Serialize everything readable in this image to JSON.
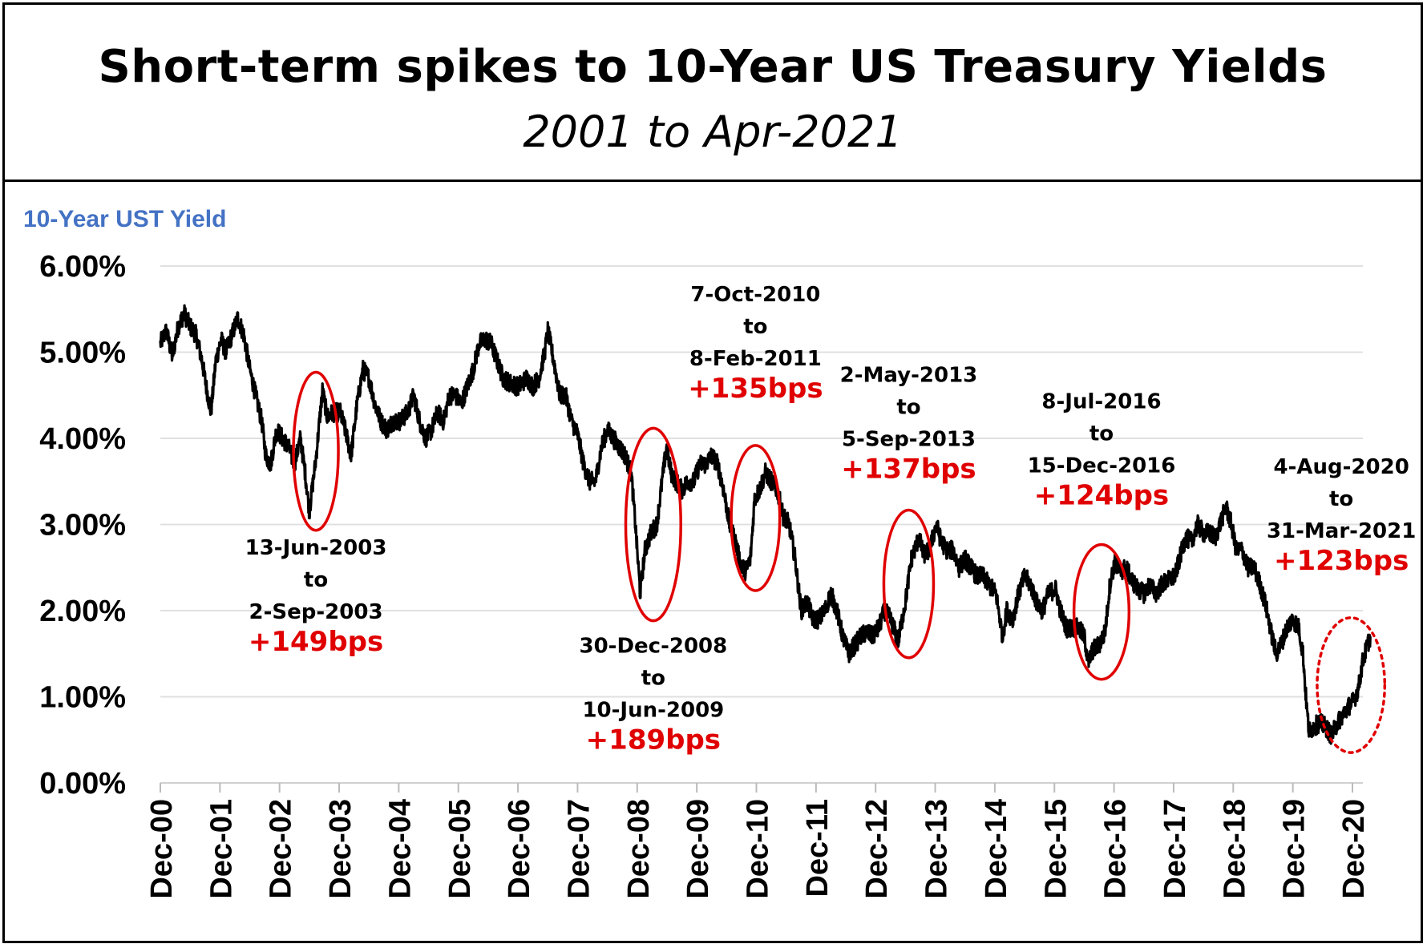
{
  "header": {
    "title": "Short-term spikes to 10-Year US Treasury Yields",
    "subtitle": "2001 to Apr-2021"
  },
  "chart_data": {
    "type": "line",
    "title": "Short-term spikes to 10-Year US Treasury Yields",
    "subtitle": "2001 to Apr-2021",
    "ylabel": "10-Year UST Yield",
    "xlabel": "",
    "ylim": [
      0,
      6
    ],
    "y_ticks": [
      "0.00%",
      "1.00%",
      "2.00%",
      "3.00%",
      "4.00%",
      "5.00%",
      "6.00%"
    ],
    "x_ticks": [
      "Dec-00",
      "Dec-01",
      "Dec-02",
      "Dec-03",
      "Dec-04",
      "Dec-05",
      "Dec-06",
      "Dec-07",
      "Dec-08",
      "Dec-09",
      "Dec-10",
      "Dec-11",
      "Dec-12",
      "Dec-13",
      "Dec-14",
      "Dec-15",
      "Dec-16",
      "Dec-17",
      "Dec-18",
      "Dec-19",
      "Dec-20"
    ],
    "grid": true,
    "colors": {
      "line": "#000000",
      "annotation": "#e00000",
      "ylabel": "#4472c4",
      "grid": "#e0e0e0"
    },
    "series": [
      {
        "values": [
          [
            2000.95,
            5.1
          ],
          [
            2001.05,
            5.25
          ],
          [
            2001.15,
            4.95
          ],
          [
            2001.25,
            5.3
          ],
          [
            2001.35,
            5.45
          ],
          [
            2001.45,
            5.3
          ],
          [
            2001.55,
            5.2
          ],
          [
            2001.65,
            4.9
          ],
          [
            2001.72,
            4.6
          ],
          [
            2001.8,
            4.3
          ],
          [
            2001.88,
            4.9
          ],
          [
            2001.97,
            5.15
          ],
          [
            2002.05,
            5.0
          ],
          [
            2002.15,
            5.2
          ],
          [
            2002.25,
            5.4
          ],
          [
            2002.35,
            5.2
          ],
          [
            2002.45,
            4.8
          ],
          [
            2002.55,
            4.5
          ],
          [
            2002.65,
            4.2
          ],
          [
            2002.72,
            3.8
          ],
          [
            2002.8,
            3.7
          ],
          [
            2002.9,
            4.1
          ],
          [
            2003.0,
            4.0
          ],
          [
            2003.1,
            3.9
          ],
          [
            2003.2,
            3.7
          ],
          [
            2003.3,
            4.0
          ],
          [
            2003.38,
            3.6
          ],
          [
            2003.45,
            3.15
          ],
          [
            2003.55,
            3.7
          ],
          [
            2003.67,
            4.55
          ],
          [
            2003.75,
            4.25
          ],
          [
            2003.85,
            4.3
          ],
          [
            2003.97,
            4.3
          ],
          [
            2004.05,
            4.1
          ],
          [
            2004.15,
            3.8
          ],
          [
            2004.25,
            4.4
          ],
          [
            2004.35,
            4.8
          ],
          [
            2004.45,
            4.7
          ],
          [
            2004.55,
            4.4
          ],
          [
            2004.65,
            4.2
          ],
          [
            2004.75,
            4.1
          ],
          [
            2004.85,
            4.2
          ],
          [
            2004.97,
            4.2
          ],
          [
            2005.1,
            4.3
          ],
          [
            2005.2,
            4.5
          ],
          [
            2005.3,
            4.2
          ],
          [
            2005.4,
            4.0
          ],
          [
            2005.5,
            4.1
          ],
          [
            2005.6,
            4.3
          ],
          [
            2005.7,
            4.2
          ],
          [
            2005.8,
            4.5
          ],
          [
            2005.9,
            4.5
          ],
          [
            2006.0,
            4.4
          ],
          [
            2006.1,
            4.6
          ],
          [
            2006.2,
            4.8
          ],
          [
            2006.3,
            5.1
          ],
          [
            2006.4,
            5.15
          ],
          [
            2006.5,
            5.1
          ],
          [
            2006.6,
            4.9
          ],
          [
            2006.7,
            4.7
          ],
          [
            2006.8,
            4.65
          ],
          [
            2006.95,
            4.6
          ],
          [
            2007.1,
            4.7
          ],
          [
            2007.2,
            4.6
          ],
          [
            2007.3,
            4.7
          ],
          [
            2007.4,
            5.0
          ],
          [
            2007.45,
            5.25
          ],
          [
            2007.55,
            4.9
          ],
          [
            2007.65,
            4.5
          ],
          [
            2007.75,
            4.5
          ],
          [
            2007.85,
            4.2
          ],
          [
            2007.95,
            4.05
          ],
          [
            2008.05,
            3.7
          ],
          [
            2008.15,
            3.5
          ],
          [
            2008.25,
            3.5
          ],
          [
            2008.35,
            3.9
          ],
          [
            2008.45,
            4.1
          ],
          [
            2008.55,
            4.0
          ],
          [
            2008.65,
            3.9
          ],
          [
            2008.75,
            3.8
          ],
          [
            2008.85,
            3.6
          ],
          [
            2008.92,
            3.0
          ],
          [
            2009.0,
            2.2
          ],
          [
            2009.08,
            2.7
          ],
          [
            2009.18,
            2.9
          ],
          [
            2009.28,
            3.0
          ],
          [
            2009.35,
            3.4
          ],
          [
            2009.44,
            3.9
          ],
          [
            2009.52,
            3.6
          ],
          [
            2009.6,
            3.5
          ],
          [
            2009.7,
            3.4
          ],
          [
            2009.8,
            3.5
          ],
          [
            2009.9,
            3.5
          ],
          [
            2010.0,
            3.7
          ],
          [
            2010.1,
            3.7
          ],
          [
            2010.2,
            3.8
          ],
          [
            2010.3,
            3.7
          ],
          [
            2010.4,
            3.4
          ],
          [
            2010.5,
            3.0
          ],
          [
            2010.6,
            2.8
          ],
          [
            2010.68,
            2.55
          ],
          [
            2010.77,
            2.45
          ],
          [
            2010.85,
            2.6
          ],
          [
            2010.92,
            3.3
          ],
          [
            2011.0,
            3.4
          ],
          [
            2011.1,
            3.6
          ],
          [
            2011.2,
            3.5
          ],
          [
            2011.3,
            3.4
          ],
          [
            2011.4,
            3.1
          ],
          [
            2011.5,
            3.0
          ],
          [
            2011.6,
            2.6
          ],
          [
            2011.7,
            2.0
          ],
          [
            2011.8,
            2.1
          ],
          [
            2011.9,
            1.9
          ],
          [
            2012.0,
            1.9
          ],
          [
            2012.1,
            2.0
          ],
          [
            2012.2,
            2.2
          ],
          [
            2012.3,
            2.0
          ],
          [
            2012.4,
            1.7
          ],
          [
            2012.5,
            1.5
          ],
          [
            2012.6,
            1.6
          ],
          [
            2012.7,
            1.7
          ],
          [
            2012.8,
            1.75
          ],
          [
            2012.9,
            1.7
          ],
          [
            2013.0,
            1.8
          ],
          [
            2013.1,
            2.0
          ],
          [
            2013.2,
            1.9
          ],
          [
            2013.33,
            1.65
          ],
          [
            2013.45,
            2.1
          ],
          [
            2013.55,
            2.6
          ],
          [
            2013.68,
            2.85
          ],
          [
            2013.75,
            2.65
          ],
          [
            2013.85,
            2.7
          ],
          [
            2013.97,
            3.0
          ],
          [
            2014.05,
            2.8
          ],
          [
            2014.15,
            2.7
          ],
          [
            2014.25,
            2.7
          ],
          [
            2014.35,
            2.5
          ],
          [
            2014.45,
            2.6
          ],
          [
            2014.55,
            2.5
          ],
          [
            2014.65,
            2.4
          ],
          [
            2014.75,
            2.4
          ],
          [
            2014.85,
            2.3
          ],
          [
            2014.97,
            2.2
          ],
          [
            2015.08,
            1.7
          ],
          [
            2015.15,
            2.0
          ],
          [
            2015.25,
            1.9
          ],
          [
            2015.35,
            2.2
          ],
          [
            2015.45,
            2.4
          ],
          [
            2015.55,
            2.3
          ],
          [
            2015.65,
            2.1
          ],
          [
            2015.75,
            2.0
          ],
          [
            2015.85,
            2.2
          ],
          [
            2015.97,
            2.25
          ],
          [
            2016.05,
            2.0
          ],
          [
            2016.15,
            1.8
          ],
          [
            2016.25,
            1.8
          ],
          [
            2016.35,
            1.8
          ],
          [
            2016.45,
            1.7
          ],
          [
            2016.52,
            1.4
          ],
          [
            2016.6,
            1.55
          ],
          [
            2016.7,
            1.6
          ],
          [
            2016.8,
            1.75
          ],
          [
            2016.88,
            2.3
          ],
          [
            2016.96,
            2.55
          ],
          [
            2017.05,
            2.45
          ],
          [
            2017.15,
            2.5
          ],
          [
            2017.25,
            2.35
          ],
          [
            2017.35,
            2.25
          ],
          [
            2017.45,
            2.2
          ],
          [
            2017.55,
            2.3
          ],
          [
            2017.65,
            2.2
          ],
          [
            2017.75,
            2.3
          ],
          [
            2017.85,
            2.35
          ],
          [
            2017.97,
            2.4
          ],
          [
            2018.05,
            2.6
          ],
          [
            2018.15,
            2.85
          ],
          [
            2018.25,
            2.8
          ],
          [
            2018.35,
            3.0
          ],
          [
            2018.45,
            2.9
          ],
          [
            2018.55,
            2.9
          ],
          [
            2018.65,
            2.85
          ],
          [
            2018.75,
            3.05
          ],
          [
            2018.83,
            3.2
          ],
          [
            2018.92,
            3.0
          ],
          [
            2019.0,
            2.7
          ],
          [
            2019.1,
            2.7
          ],
          [
            2019.2,
            2.5
          ],
          [
            2019.3,
            2.5
          ],
          [
            2019.4,
            2.3
          ],
          [
            2019.5,
            2.05
          ],
          [
            2019.6,
            1.7
          ],
          [
            2019.67,
            1.5
          ],
          [
            2019.75,
            1.6
          ],
          [
            2019.85,
            1.8
          ],
          [
            2019.95,
            1.9
          ],
          [
            2020.05,
            1.8
          ],
          [
            2020.12,
            1.5
          ],
          [
            2020.18,
            0.9
          ],
          [
            2020.22,
            0.6
          ],
          [
            2020.3,
            0.65
          ],
          [
            2020.4,
            0.7
          ],
          [
            2020.5,
            0.65
          ],
          [
            2020.6,
            0.55
          ],
          [
            2020.7,
            0.7
          ],
          [
            2020.8,
            0.8
          ],
          [
            2020.9,
            0.9
          ],
          [
            2020.97,
            0.95
          ],
          [
            2021.05,
            1.1
          ],
          [
            2021.12,
            1.4
          ],
          [
            2021.2,
            1.6
          ],
          [
            2021.25,
            1.7
          ]
        ]
      }
    ],
    "annotations": [
      {
        "dates": [
          "13-Jun-2003",
          "to",
          "2-Sep-2003"
        ],
        "change": "+149bps",
        "style": "solid",
        "x_range": [
          2003.45,
          2003.67
        ],
        "y_range": [
          3.1,
          4.6
        ]
      },
      {
        "dates": [
          "30-Dec-2008",
          "to",
          "10-Jun-2009"
        ],
        "change": "+189bps",
        "style": "solid",
        "x_range": [
          2009.0,
          2009.44
        ],
        "y_range": [
          2.05,
          3.95
        ]
      },
      {
        "dates": [
          "7-Oct-2010",
          "to",
          "8-Feb-2011"
        ],
        "change": "+135bps",
        "style": "solid",
        "x_range": [
          2010.77,
          2011.1
        ],
        "y_range": [
          2.4,
          3.75
        ]
      },
      {
        "dates": [
          "2-May-2013",
          "to",
          "5-Sep-2013"
        ],
        "change": "+137bps",
        "style": "solid",
        "x_range": [
          2013.33,
          2013.68
        ],
        "y_range": [
          1.62,
          3.0
        ]
      },
      {
        "dates": [
          "8-Jul-2016",
          "to",
          "15-Dec-2016"
        ],
        "change": "+124bps",
        "style": "solid",
        "x_range": [
          2016.52,
          2016.96
        ],
        "y_range": [
          1.37,
          2.6
        ]
      },
      {
        "dates": [
          "4-Aug-2020",
          "to",
          "31-Mar-2021"
        ],
        "change": "+123bps",
        "style": "dotted",
        "x_range": [
          2020.6,
          2021.25
        ],
        "y_range": [
          0.52,
          1.75
        ]
      }
    ]
  }
}
